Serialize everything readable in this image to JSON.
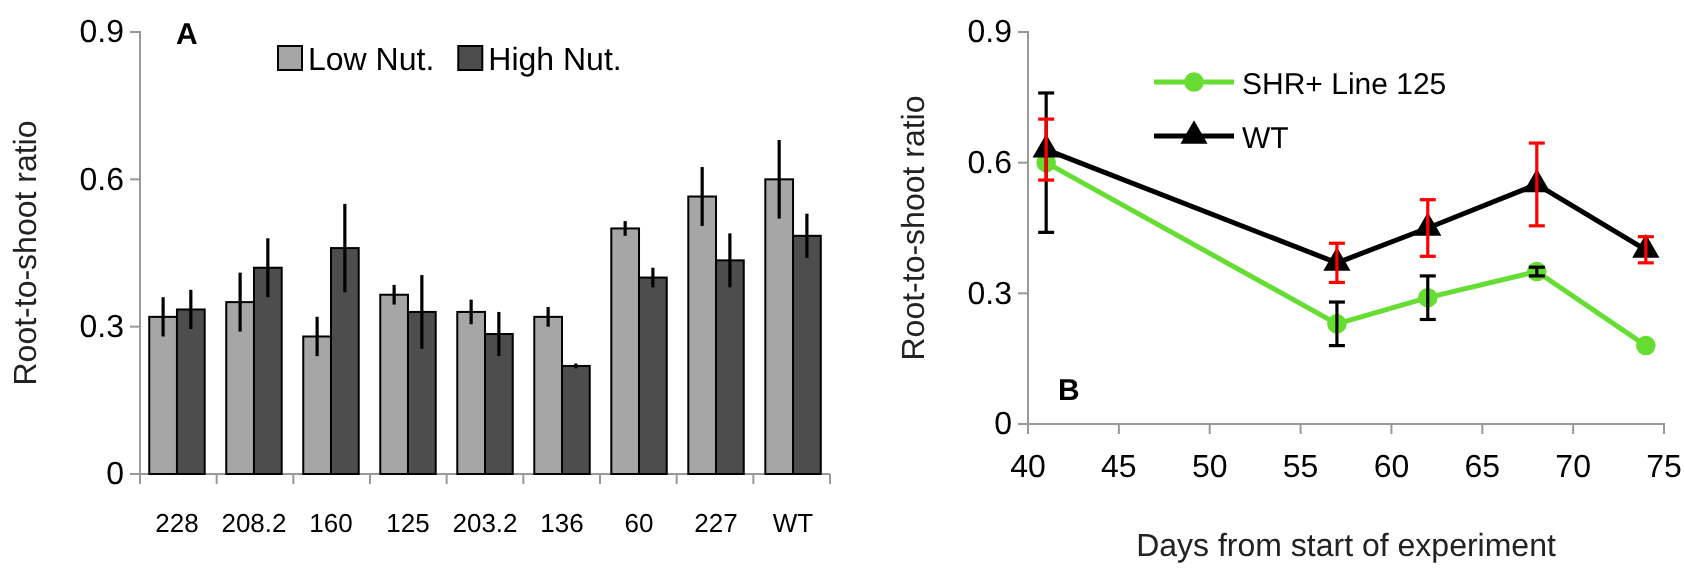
{
  "chart_data": [
    {
      "type": "bar",
      "ylabel": "Root-to-shoot ratio",
      "annotations": [
        "A"
      ],
      "categories": [
        "228",
        "208.2",
        "160",
        "125",
        "203.2",
        "136",
        "60",
        "227",
        "WT"
      ],
      "ylim": [
        0,
        0.9
      ],
      "yticks": [
        0,
        0.3,
        0.6,
        0.9
      ],
      "legend": "top",
      "grid": false,
      "series": [
        {
          "name": "Low Nut.",
          "color": "#a6a6a6",
          "values": [
            0.32,
            0.35,
            0.28,
            0.365,
            0.33,
            0.32,
            0.5,
            0.565,
            0.6
          ],
          "errors": [
            0.04,
            0.06,
            0.04,
            0.02,
            0.025,
            0.02,
            0.015,
            0.06,
            0.08
          ]
        },
        {
          "name": "High Nut.",
          "color": "#4d4d4d",
          "values": [
            0.335,
            0.42,
            0.46,
            0.33,
            0.285,
            0.22,
            0.4,
            0.435,
            0.485
          ],
          "errors": [
            0.04,
            0.06,
            0.09,
            0.075,
            0.045,
            0.005,
            0.02,
            0.055,
            0.045
          ]
        }
      ]
    },
    {
      "type": "line",
      "xlabel": "Days from start of experiment",
      "ylabel": "Root-to-shoot ratio",
      "annotations": [
        "B"
      ],
      "x": [
        41,
        57,
        62,
        68,
        74
      ],
      "xlim": [
        40,
        75
      ],
      "xticks": [
        40,
        45,
        50,
        55,
        60,
        65,
        70,
        75
      ],
      "ylim": [
        0,
        0.9
      ],
      "yticks": [
        0,
        0.3,
        0.6,
        0.9
      ],
      "legend": "top",
      "grid": false,
      "series": [
        {
          "name": "SHR+ Line 125",
          "color": "#66dd33",
          "marker": "circle",
          "values": [
            0.6,
            0.23,
            0.29,
            0.35,
            0.18
          ],
          "errors": [
            0.16,
            0.05,
            0.05,
            0.01,
            null
          ]
        },
        {
          "name": "WT",
          "color": "#000000",
          "marker": "triangle",
          "values": [
            0.63,
            0.37,
            0.45,
            0.55,
            0.4
          ],
          "errors": [
            0.07,
            0.045,
            0.065,
            0.095,
            0.03
          ]
        }
      ]
    }
  ]
}
